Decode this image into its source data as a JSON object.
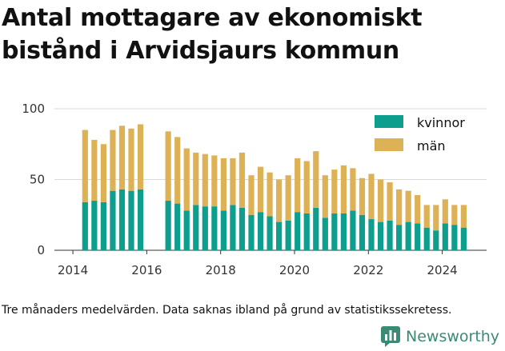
{
  "title": "Antal mottagare av ekonomiskt bistånd i Arvidsjaurs kommun",
  "caption": "Tre månaders medelvärden. Data saknas ibland på grund av statistikssekretess.",
  "brand": {
    "name": "Newsworthy",
    "icon": "bar-chart-logo-icon",
    "color": "#3b8a76"
  },
  "chart_data": {
    "type": "bar",
    "stacked": true,
    "x_unit": "year",
    "xlim": [
      2013.5,
      2025.2
    ],
    "ylim": [
      0,
      100
    ],
    "yticks": [
      0,
      50,
      100
    ],
    "xticks": [
      2014,
      2016,
      2018,
      2020,
      2022,
      2024
    ],
    "grid": "horizontal",
    "legend_position": "top-right",
    "x": [
      2014.33,
      2014.58,
      2014.83,
      2015.08,
      2015.33,
      2015.58,
      2015.83,
      2016.58,
      2016.83,
      2017.08,
      2017.33,
      2017.58,
      2017.83,
      2018.08,
      2018.33,
      2018.58,
      2018.83,
      2019.08,
      2019.33,
      2019.58,
      2019.83,
      2020.08,
      2020.33,
      2020.58,
      2020.83,
      2021.08,
      2021.33,
      2021.58,
      2021.83,
      2022.08,
      2022.33,
      2022.58,
      2022.83,
      2023.08,
      2023.33,
      2023.58,
      2023.83,
      2024.08,
      2024.33,
      2024.58
    ],
    "series": [
      {
        "name": "kvinnor",
        "color": "#0e9e8e",
        "values": [
          34,
          35,
          34,
          42,
          43,
          42,
          43,
          35,
          33,
          28,
          32,
          31,
          31,
          28,
          32,
          30,
          25,
          27,
          24,
          20,
          21,
          27,
          26,
          30,
          23,
          26,
          26,
          28,
          25,
          22,
          20,
          21,
          18,
          20,
          19,
          16,
          14,
          19,
          18,
          16
        ]
      },
      {
        "name": "män",
        "color": "#ddb257",
        "values": [
          51,
          43,
          41,
          43,
          45,
          44,
          46,
          49,
          47,
          44,
          37,
          37,
          36,
          37,
          33,
          39,
          28,
          32,
          31,
          30,
          32,
          38,
          37,
          40,
          30,
          31,
          34,
          30,
          26,
          32,
          30,
          27,
          25,
          22,
          20,
          16,
          18,
          17,
          14,
          16
        ]
      }
    ]
  }
}
